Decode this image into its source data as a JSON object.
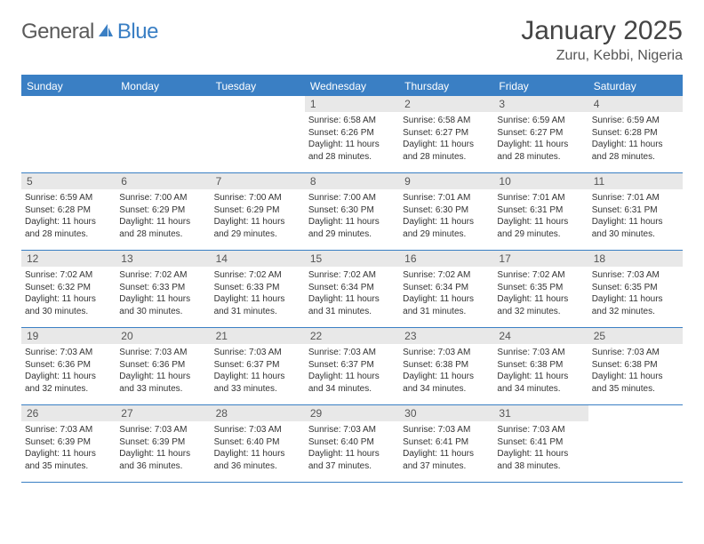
{
  "logo": {
    "text1": "General",
    "text2": "Blue",
    "icon_color": "#3a7fc4"
  },
  "title": "January 2025",
  "location": "Zuru, Kebbi, Nigeria",
  "header_bg": "#3a7fc4",
  "daynum_bg": "#e8e8e8",
  "border_color": "#3a7fc4",
  "day_names": [
    "Sunday",
    "Monday",
    "Tuesday",
    "Wednesday",
    "Thursday",
    "Friday",
    "Saturday"
  ],
  "weeks": [
    [
      {
        "n": "",
        "sr": "",
        "ss": "",
        "dl": ""
      },
      {
        "n": "",
        "sr": "",
        "ss": "",
        "dl": ""
      },
      {
        "n": "",
        "sr": "",
        "ss": "",
        "dl": ""
      },
      {
        "n": "1",
        "sr": "Sunrise: 6:58 AM",
        "ss": "Sunset: 6:26 PM",
        "dl": "Daylight: 11 hours and 28 minutes."
      },
      {
        "n": "2",
        "sr": "Sunrise: 6:58 AM",
        "ss": "Sunset: 6:27 PM",
        "dl": "Daylight: 11 hours and 28 minutes."
      },
      {
        "n": "3",
        "sr": "Sunrise: 6:59 AM",
        "ss": "Sunset: 6:27 PM",
        "dl": "Daylight: 11 hours and 28 minutes."
      },
      {
        "n": "4",
        "sr": "Sunrise: 6:59 AM",
        "ss": "Sunset: 6:28 PM",
        "dl": "Daylight: 11 hours and 28 minutes."
      }
    ],
    [
      {
        "n": "5",
        "sr": "Sunrise: 6:59 AM",
        "ss": "Sunset: 6:28 PM",
        "dl": "Daylight: 11 hours and 28 minutes."
      },
      {
        "n": "6",
        "sr": "Sunrise: 7:00 AM",
        "ss": "Sunset: 6:29 PM",
        "dl": "Daylight: 11 hours and 28 minutes."
      },
      {
        "n": "7",
        "sr": "Sunrise: 7:00 AM",
        "ss": "Sunset: 6:29 PM",
        "dl": "Daylight: 11 hours and 29 minutes."
      },
      {
        "n": "8",
        "sr": "Sunrise: 7:00 AM",
        "ss": "Sunset: 6:30 PM",
        "dl": "Daylight: 11 hours and 29 minutes."
      },
      {
        "n": "9",
        "sr": "Sunrise: 7:01 AM",
        "ss": "Sunset: 6:30 PM",
        "dl": "Daylight: 11 hours and 29 minutes."
      },
      {
        "n": "10",
        "sr": "Sunrise: 7:01 AM",
        "ss": "Sunset: 6:31 PM",
        "dl": "Daylight: 11 hours and 29 minutes."
      },
      {
        "n": "11",
        "sr": "Sunrise: 7:01 AM",
        "ss": "Sunset: 6:31 PM",
        "dl": "Daylight: 11 hours and 30 minutes."
      }
    ],
    [
      {
        "n": "12",
        "sr": "Sunrise: 7:02 AM",
        "ss": "Sunset: 6:32 PM",
        "dl": "Daylight: 11 hours and 30 minutes."
      },
      {
        "n": "13",
        "sr": "Sunrise: 7:02 AM",
        "ss": "Sunset: 6:33 PM",
        "dl": "Daylight: 11 hours and 30 minutes."
      },
      {
        "n": "14",
        "sr": "Sunrise: 7:02 AM",
        "ss": "Sunset: 6:33 PM",
        "dl": "Daylight: 11 hours and 31 minutes."
      },
      {
        "n": "15",
        "sr": "Sunrise: 7:02 AM",
        "ss": "Sunset: 6:34 PM",
        "dl": "Daylight: 11 hours and 31 minutes."
      },
      {
        "n": "16",
        "sr": "Sunrise: 7:02 AM",
        "ss": "Sunset: 6:34 PM",
        "dl": "Daylight: 11 hours and 31 minutes."
      },
      {
        "n": "17",
        "sr": "Sunrise: 7:02 AM",
        "ss": "Sunset: 6:35 PM",
        "dl": "Daylight: 11 hours and 32 minutes."
      },
      {
        "n": "18",
        "sr": "Sunrise: 7:03 AM",
        "ss": "Sunset: 6:35 PM",
        "dl": "Daylight: 11 hours and 32 minutes."
      }
    ],
    [
      {
        "n": "19",
        "sr": "Sunrise: 7:03 AM",
        "ss": "Sunset: 6:36 PM",
        "dl": "Daylight: 11 hours and 32 minutes."
      },
      {
        "n": "20",
        "sr": "Sunrise: 7:03 AM",
        "ss": "Sunset: 6:36 PM",
        "dl": "Daylight: 11 hours and 33 minutes."
      },
      {
        "n": "21",
        "sr": "Sunrise: 7:03 AM",
        "ss": "Sunset: 6:37 PM",
        "dl": "Daylight: 11 hours and 33 minutes."
      },
      {
        "n": "22",
        "sr": "Sunrise: 7:03 AM",
        "ss": "Sunset: 6:37 PM",
        "dl": "Daylight: 11 hours and 34 minutes."
      },
      {
        "n": "23",
        "sr": "Sunrise: 7:03 AM",
        "ss": "Sunset: 6:38 PM",
        "dl": "Daylight: 11 hours and 34 minutes."
      },
      {
        "n": "24",
        "sr": "Sunrise: 7:03 AM",
        "ss": "Sunset: 6:38 PM",
        "dl": "Daylight: 11 hours and 34 minutes."
      },
      {
        "n": "25",
        "sr": "Sunrise: 7:03 AM",
        "ss": "Sunset: 6:38 PM",
        "dl": "Daylight: 11 hours and 35 minutes."
      }
    ],
    [
      {
        "n": "26",
        "sr": "Sunrise: 7:03 AM",
        "ss": "Sunset: 6:39 PM",
        "dl": "Daylight: 11 hours and 35 minutes."
      },
      {
        "n": "27",
        "sr": "Sunrise: 7:03 AM",
        "ss": "Sunset: 6:39 PM",
        "dl": "Daylight: 11 hours and 36 minutes."
      },
      {
        "n": "28",
        "sr": "Sunrise: 7:03 AM",
        "ss": "Sunset: 6:40 PM",
        "dl": "Daylight: 11 hours and 36 minutes."
      },
      {
        "n": "29",
        "sr": "Sunrise: 7:03 AM",
        "ss": "Sunset: 6:40 PM",
        "dl": "Daylight: 11 hours and 37 minutes."
      },
      {
        "n": "30",
        "sr": "Sunrise: 7:03 AM",
        "ss": "Sunset: 6:41 PM",
        "dl": "Daylight: 11 hours and 37 minutes."
      },
      {
        "n": "31",
        "sr": "Sunrise: 7:03 AM",
        "ss": "Sunset: 6:41 PM",
        "dl": "Daylight: 11 hours and 38 minutes."
      },
      {
        "n": "",
        "sr": "",
        "ss": "",
        "dl": ""
      }
    ]
  ]
}
